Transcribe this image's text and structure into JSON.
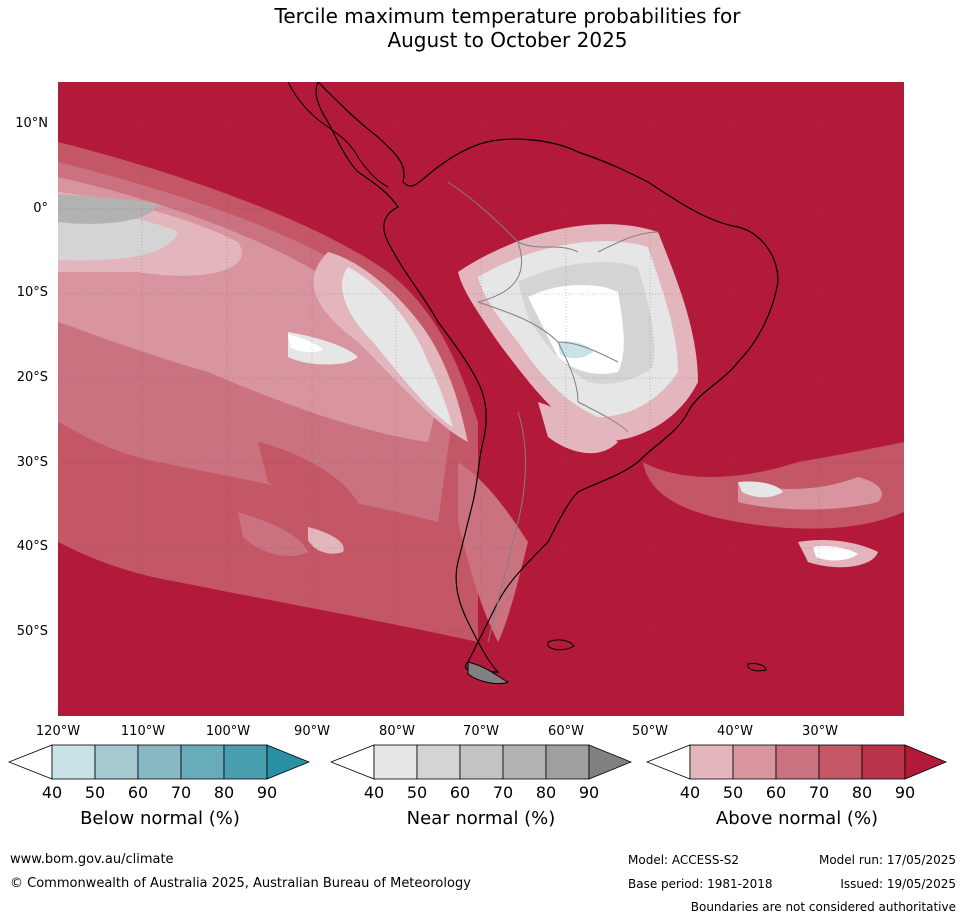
{
  "title": {
    "line1": "Tercile maximum temperature probabilities for",
    "line2": "August to October 2025"
  },
  "map": {
    "lat_labels": [
      "10°N",
      "0°",
      "10°S",
      "20°S",
      "30°S",
      "40°S",
      "50°S"
    ],
    "lon_labels": [
      "120°W",
      "110°W",
      "100°W",
      "90°W",
      "80°W",
      "70°W",
      "60°W",
      "50°W",
      "40°W",
      "30°W"
    ],
    "extent": {
      "lon_min": -120,
      "lon_max": -20,
      "lat_min": -60,
      "lat_max": 15
    },
    "background_category": "Above normal 80-90%"
  },
  "colorbars": [
    {
      "title": "Below normal (%)",
      "ticks": [
        "40",
        "50",
        "60",
        "70",
        "80",
        "90"
      ],
      "colors": [
        "#ffffff",
        "#c9e2e8",
        "#a6c8cf",
        "#88b8c4",
        "#68abbb",
        "#489ead",
        "#2a8ea4"
      ]
    },
    {
      "title": "Near normal (%)",
      "ticks": [
        "40",
        "50",
        "60",
        "70",
        "80",
        "90"
      ],
      "colors": [
        "#ffffff",
        "#e6e6e6",
        "#d4d4d4",
        "#c3c3c3",
        "#b2b2b2",
        "#a0a0a0",
        "#808080"
      ]
    },
    {
      "title": "Above normal (%)",
      "ticks": [
        "40",
        "50",
        "60",
        "70",
        "80",
        "90"
      ],
      "colors": [
        "#ffffff",
        "#e3b6bd",
        "#d8959f",
        "#ca7280",
        "#c45766",
        "#b9334b",
        "#b31a3a"
      ]
    }
  ],
  "footer": {
    "website": "www.bom.gov.au/climate",
    "copyright": "© Commonwealth of Australia 2025, Australian Bureau of Meteorology",
    "model": "Model: ACCESS-S2",
    "model_run": "Model run: 17/05/2025",
    "base_period": "Base period: 1981-2018",
    "issued": "Issued: 19/05/2025",
    "disclaimer": "Boundaries are not considered authoritative"
  }
}
